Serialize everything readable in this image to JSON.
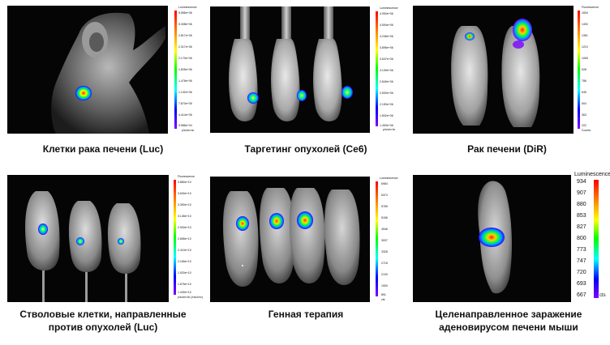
{
  "panels": [
    {
      "caption": "Клетки рака печени (Luc)",
      "scale": {
        "title": "Luminescence",
        "ticks": [
          "5.555e+06",
          "5.308e+06",
          "2.817e+06",
          "2.317e+06",
          "2.170e+06",
          "1.825e+06",
          "1.476e+06",
          "1.132e+06",
          "7.870e+05",
          "4.414e+05",
          "9.586e+04"
        ],
        "unit": "p/s/cm²/sr"
      }
    },
    {
      "caption": "Таргетинг опухолей (Ce6)",
      "scale": {
        "title": "Luminescence",
        "ticks": [
          "4.994e+06",
          "4.594e+06",
          "4.246e+06",
          "3.896e+06",
          "3.547e+06",
          "3.199e+06",
          "2.849e+06",
          "2.500e+06",
          "2.150e+06",
          "1.802e+06",
          "1.453e+06"
        ],
        "unit": "p/s/cm²/sr"
      }
    },
    {
      "caption": "Рак печени (DiR)",
      "scale": {
        "title": "Fluorescence",
        "ticks": [
          "1834",
          "1492",
          "1351",
          "1210",
          "1069",
          "928",
          "786",
          "645",
          "504",
          "363",
          "222"
        ],
        "unit": "Counts"
      }
    },
    {
      "caption": "Стволовые клетки, направленные против опухолей (Luc)",
      "scale": {
        "title": "Fluorescence",
        "ticks": [
          "3.880e+10",
          "3.630e+10",
          "3.390e+10",
          "3.145e+10",
          "2.900e+10",
          "2.655e+10",
          "2.410e+10",
          "2.165e+10",
          "1.920e+10",
          "1.675e+10",
          "1.430e+10"
        ],
        "unit": "p/s/cm²/sr (/uw/cm²)"
      }
    },
    {
      "caption": "Генная терапия",
      "scale": {
        "title": "Luminescence",
        "ticks": [
          "6984",
          "6374",
          "5765",
          "5156",
          "4546",
          "3937",
          "3328",
          "2718",
          "2109",
          "1500",
          "891"
        ],
        "unit": "cts"
      }
    },
    {
      "caption": "Целенаправленное заражение аденовирусом печени мыши",
      "scale": {
        "title": "Luminescence",
        "ticks": [
          "934",
          "907",
          "880",
          "853",
          "827",
          "800",
          "773",
          "747",
          "720",
          "693",
          "667"
        ],
        "unit": "cts"
      }
    }
  ]
}
